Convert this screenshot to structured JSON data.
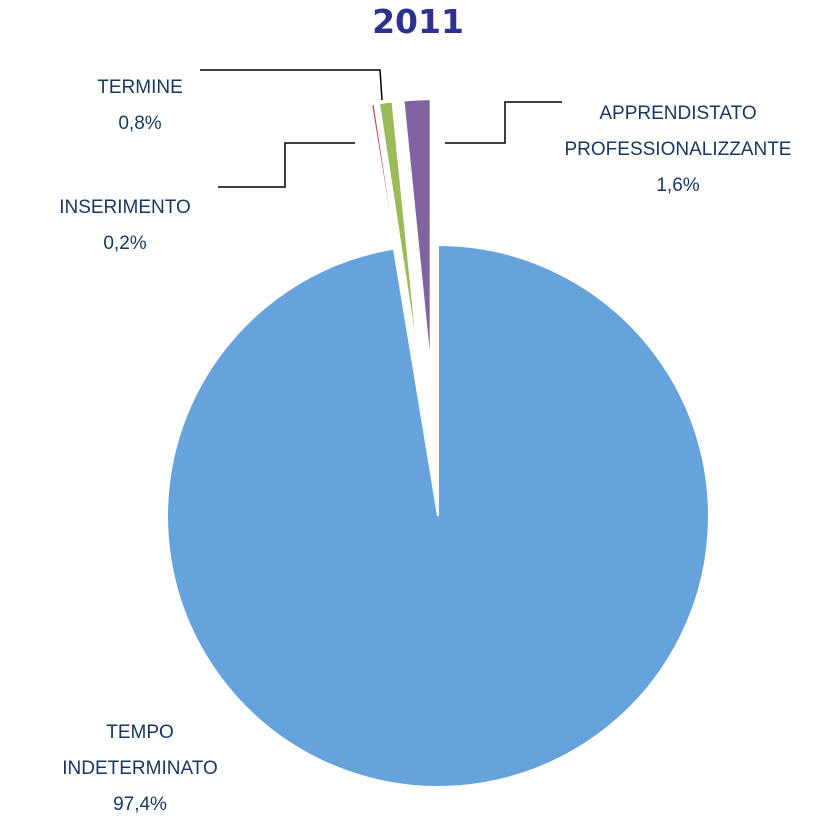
{
  "chart_data": {
    "type": "pie",
    "title": "2011",
    "categories": [
      "TEMPO INDETERMINATO",
      "INSERIMENTO",
      "TERMINE",
      "APPRENDISTATO PROFESSIONALIZZANTE"
    ],
    "values": [
      97.4,
      0.2,
      0.8,
      1.6
    ],
    "value_labels": [
      "97,4%",
      "0,2%",
      "0,8%",
      "1,6%"
    ],
    "colors": [
      "#66a3dd",
      "#c0504d",
      "#9bbb59",
      "#8064a2"
    ]
  }
}
